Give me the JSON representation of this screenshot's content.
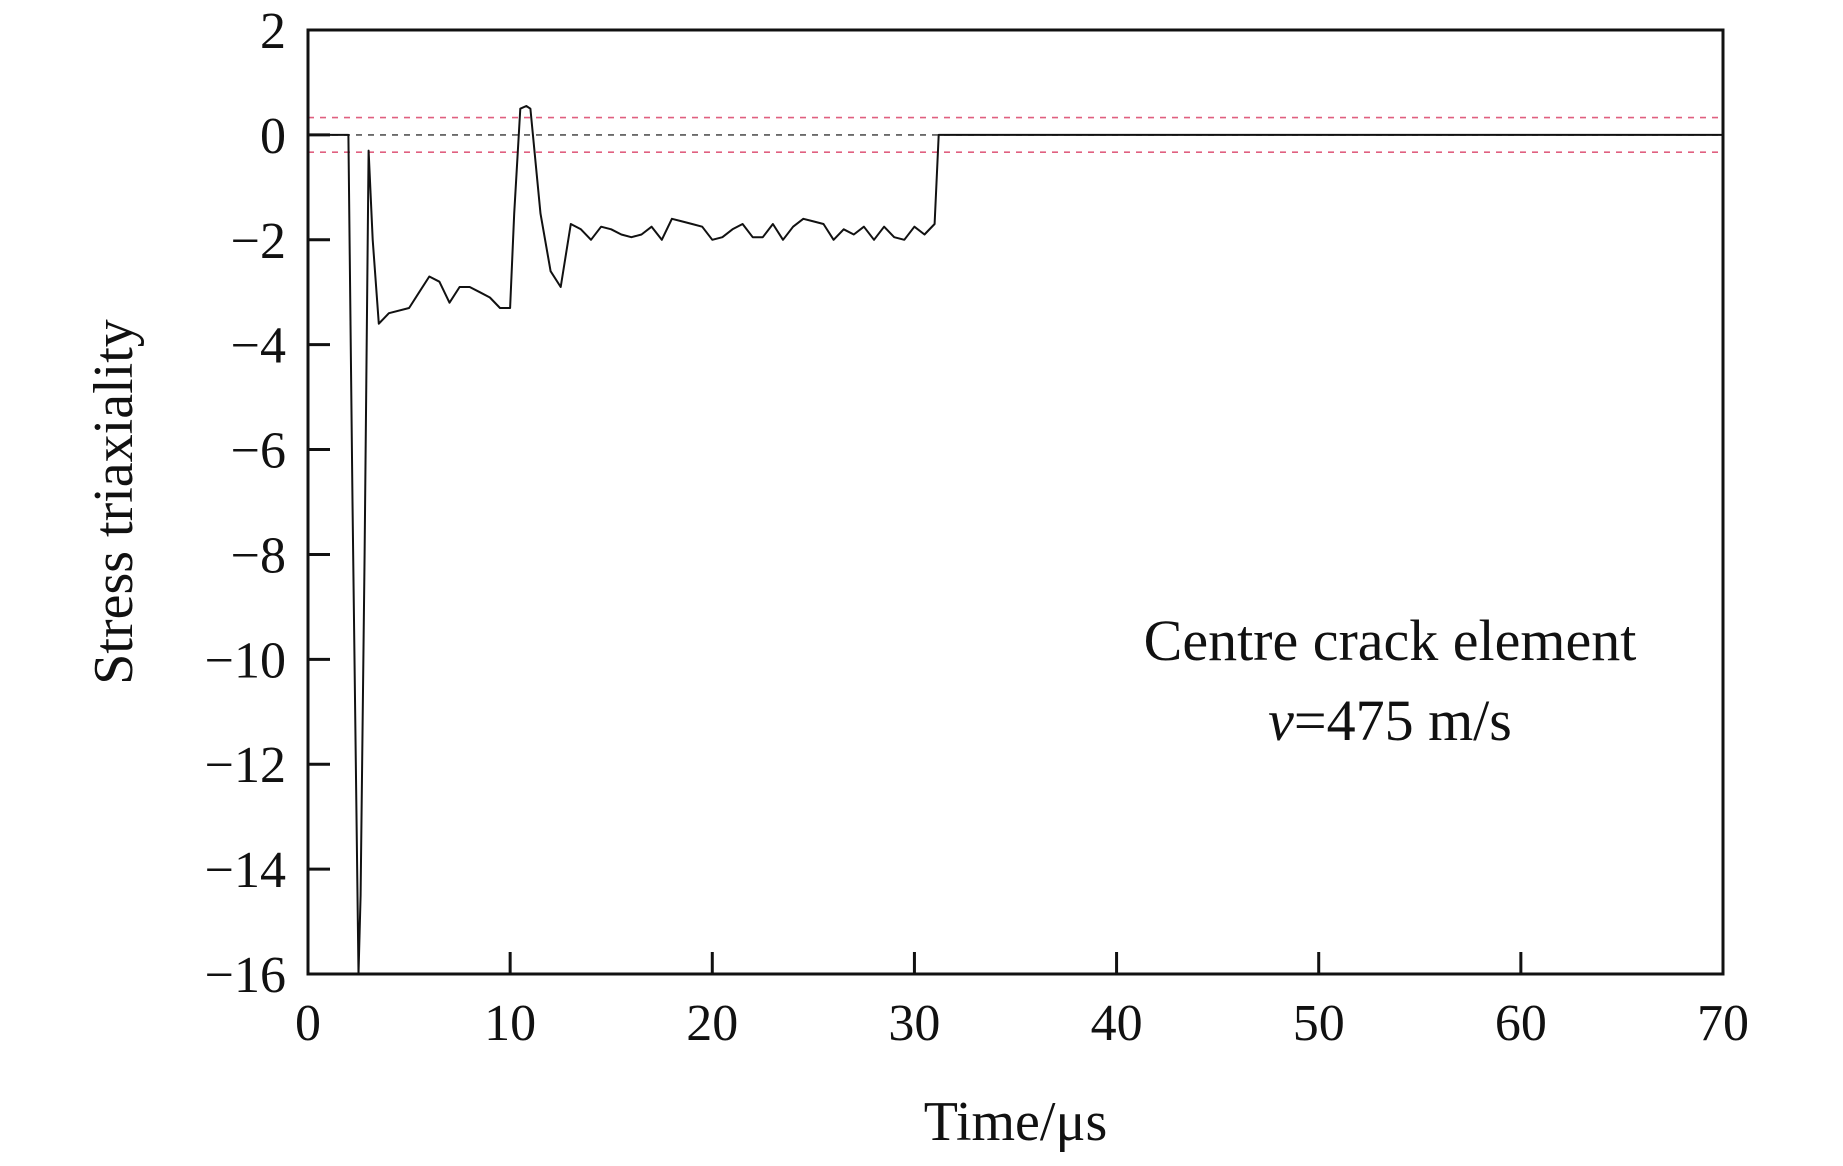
{
  "chart_data": {
    "type": "line",
    "title": "",
    "xlabel": "Time/μs",
    "ylabel": "Stress triaxiality",
    "xlim": [
      0,
      70
    ],
    "ylim": [
      -16,
      2
    ],
    "xticks": [
      0,
      10,
      20,
      30,
      40,
      50,
      60,
      70
    ],
    "yticks": [
      2,
      0,
      -2,
      -4,
      -6,
      -8,
      -10,
      -12,
      -14,
      -16
    ],
    "xtick_labels": [
      "0",
      "10",
      "20",
      "30",
      "40",
      "50",
      "60",
      "70"
    ],
    "ytick_labels": [
      "2",
      "0",
      "−2",
      "−4",
      "−6",
      "−8",
      "−10",
      "−12",
      "−14",
      "−16"
    ],
    "grid": false,
    "legend": false,
    "annotation": {
      "line1": "Centre crack element",
      "line2_italic": "v",
      "line2_rest": "=475 m/s"
    },
    "reference_lines": [
      {
        "y": 0.33,
        "style": "dashed",
        "color": "#e06080"
      },
      {
        "y": 0.0,
        "style": "dashed",
        "color": "#555555"
      },
      {
        "y": -0.33,
        "style": "dashed",
        "color": "#e06080"
      }
    ],
    "series": [
      {
        "line_color": "#111111",
        "x": [
          0,
          2.0,
          2.2,
          2.5,
          2.6,
          2.8,
          3.0,
          3.2,
          3.5,
          4.0,
          5.0,
          5.5,
          6.0,
          6.5,
          7.0,
          7.5,
          8.0,
          8.5,
          9.0,
          9.5,
          10.0,
          10.2,
          10.5,
          10.8,
          11.0,
          11.5,
          12.0,
          12.5,
          13.0,
          13.5,
          14.0,
          14.5,
          15.0,
          15.5,
          16.0,
          16.5,
          17.0,
          17.5,
          18.0,
          18.5,
          19.0,
          19.5,
          20.0,
          20.5,
          21.0,
          21.5,
          22.0,
          22.5,
          23.0,
          23.5,
          24.0,
          24.5,
          25.0,
          25.5,
          26.0,
          26.5,
          27.0,
          27.5,
          28.0,
          28.5,
          29.0,
          29.5,
          30.0,
          30.5,
          31.0,
          31.2,
          32,
          40,
          50,
          60,
          70
        ],
        "y": [
          0,
          0,
          -7,
          -16,
          -14.5,
          -8,
          -0.3,
          -2,
          -3.6,
          -3.4,
          -3.3,
          -3.0,
          -2.7,
          -2.8,
          -3.2,
          -2.9,
          -2.9,
          -3.0,
          -3.1,
          -3.3,
          -3.3,
          -1.5,
          0.5,
          0.55,
          0.5,
          -1.5,
          -2.6,
          -2.9,
          -1.7,
          -1.8,
          -2.0,
          -1.75,
          -1.8,
          -1.9,
          -1.95,
          -1.9,
          -1.75,
          -2.0,
          -1.6,
          -1.65,
          -1.7,
          -1.75,
          -2.0,
          -1.95,
          -1.8,
          -1.7,
          -1.95,
          -1.95,
          -1.7,
          -2.0,
          -1.75,
          -1.6,
          -1.65,
          -1.7,
          -2.0,
          -1.8,
          -1.9,
          -1.75,
          -2.0,
          -1.75,
          -1.95,
          -2.0,
          -1.75,
          -1.9,
          -1.7,
          0,
          0,
          0,
          0,
          0,
          0
        ]
      }
    ]
  }
}
